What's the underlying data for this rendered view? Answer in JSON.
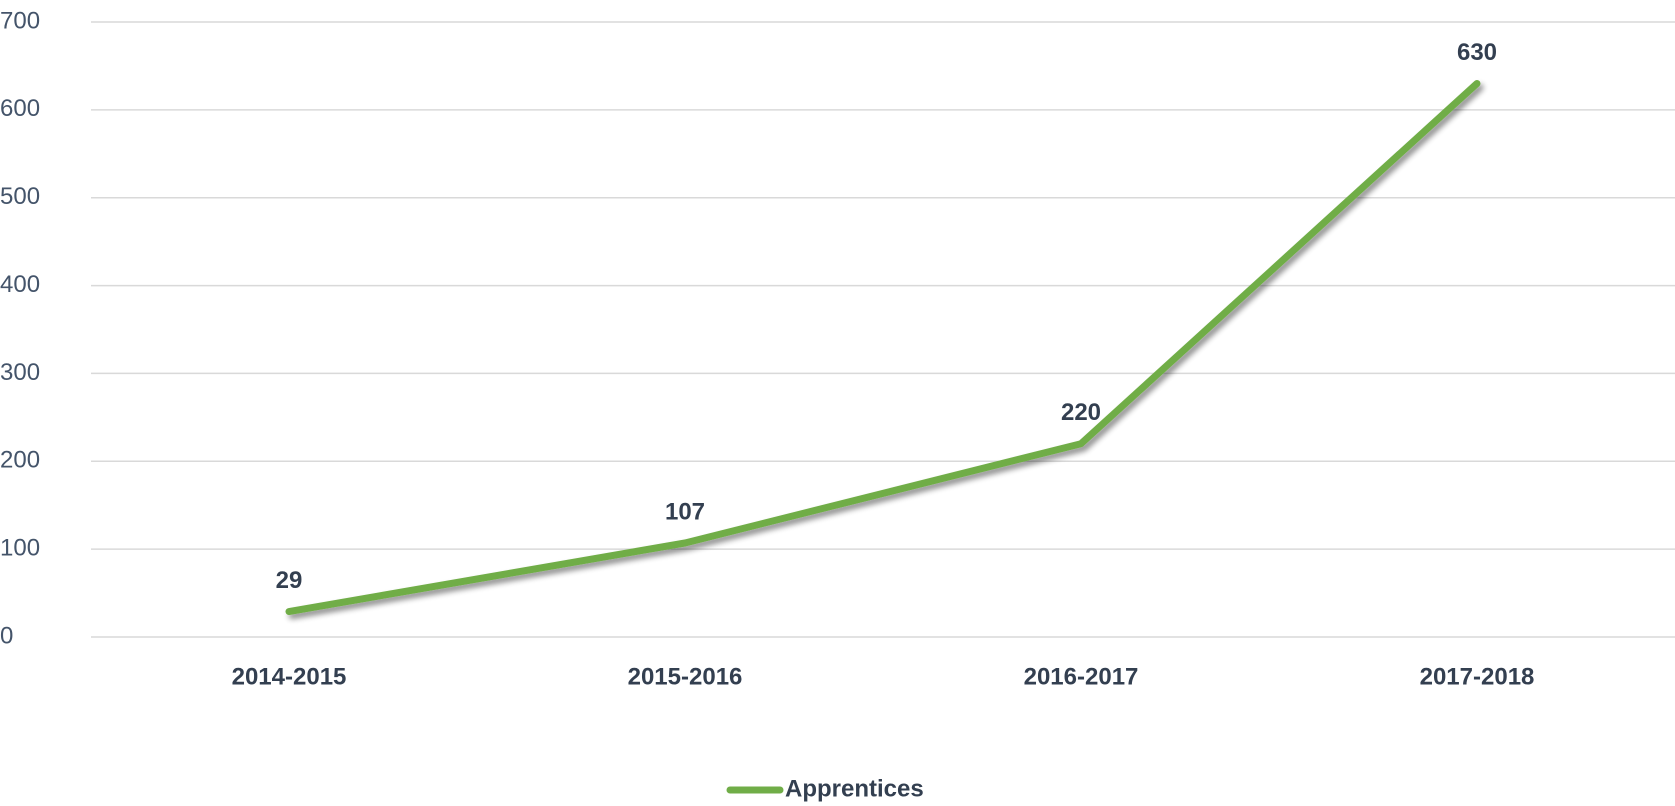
{
  "chart_data": {
    "type": "line",
    "categories": [
      "2014-2015",
      "2015-2016",
      "2016-2017",
      "2017-2018"
    ],
    "series": [
      {
        "name": "Apprentices",
        "color": "#70ad47",
        "values": [
          29,
          107,
          220,
          630
        ]
      }
    ],
    "ylim": [
      0,
      700
    ],
    "yticks": [
      0,
      100,
      200,
      300,
      400,
      500,
      600,
      700
    ],
    "grid": true,
    "legend": "bottom"
  }
}
